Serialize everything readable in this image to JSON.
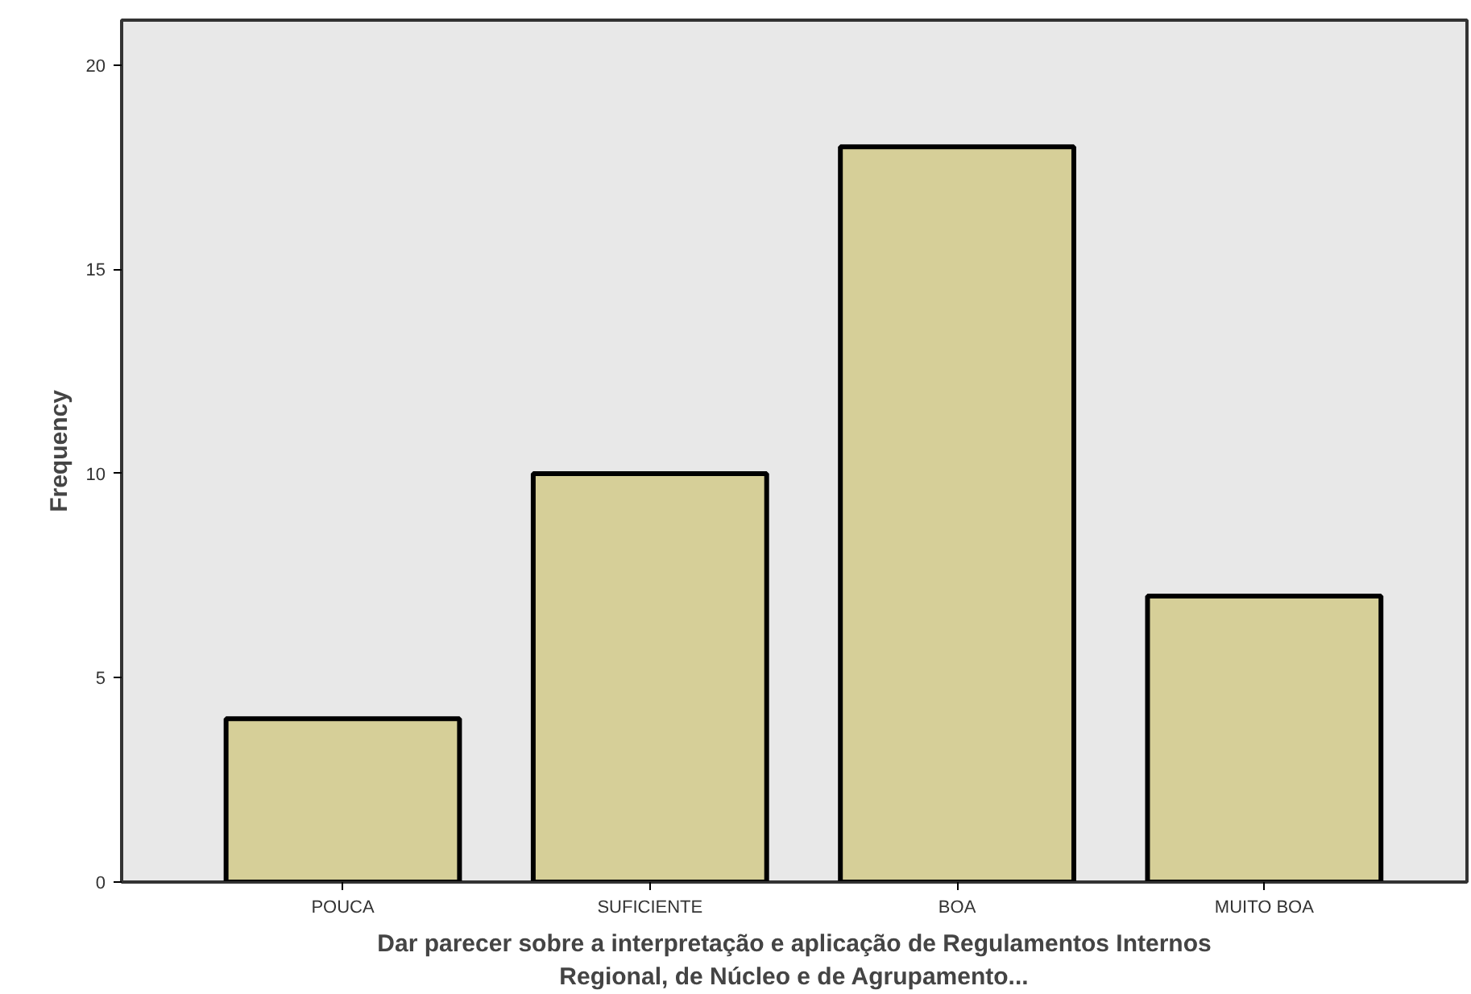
{
  "chart_data": {
    "type": "bar",
    "xlabel": "Dar parecer sobre a interpretação e aplicação de Regulamentos Internos\nRegional, de Núcleo e de Agrupamento...",
    "ylabel": "Frequency",
    "categories": [
      "POUCA",
      "SUFICIENTE",
      "BOA",
      "MUITO BOA"
    ],
    "values": [
      4,
      10,
      18,
      7
    ],
    "color": "#d6cf98",
    "ylim": [
      0,
      21.1
    ],
    "yticks": [
      0,
      5,
      10,
      15,
      20
    ],
    "grid": false
  }
}
